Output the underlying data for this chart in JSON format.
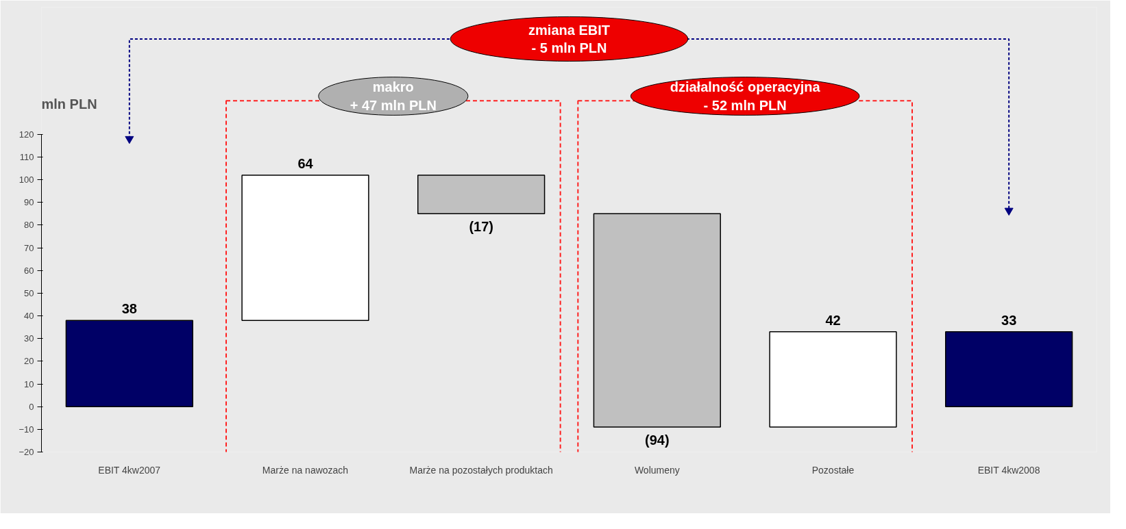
{
  "chart_data": {
    "type": "bar",
    "ylabel": "mln PLN",
    "categories": [
      "EBIT 4kw2007",
      "Marże na nawozach",
      "Marże na pozostałych produktach",
      "Wolumeny",
      "Pozostałe",
      "EBIT 4kw2008"
    ],
    "values": [
      38,
      64,
      -17,
      -94,
      42,
      33
    ],
    "base": [
      0,
      38,
      102,
      85,
      -9,
      0
    ],
    "colors": [
      "#000066",
      "#ffffff",
      "#c0c0c0",
      "#c0c0c0",
      "#ffffff",
      "#000066"
    ],
    "value_labels": [
      "38",
      "64",
      "(17)",
      "(94)",
      "42",
      "33"
    ],
    "ylim": [
      -20,
      120
    ],
    "yticks": [
      -20,
      -10,
      0,
      10,
      20,
      30,
      40,
      50,
      60,
      70,
      80,
      90,
      100,
      110,
      120
    ],
    "annotations": [
      "zmiana EBIT\n- 5 mln PLN",
      "makro\n+ 47 mln PLN",
      "działalność operacyjna\n- 52 mln PLN"
    ]
  }
}
